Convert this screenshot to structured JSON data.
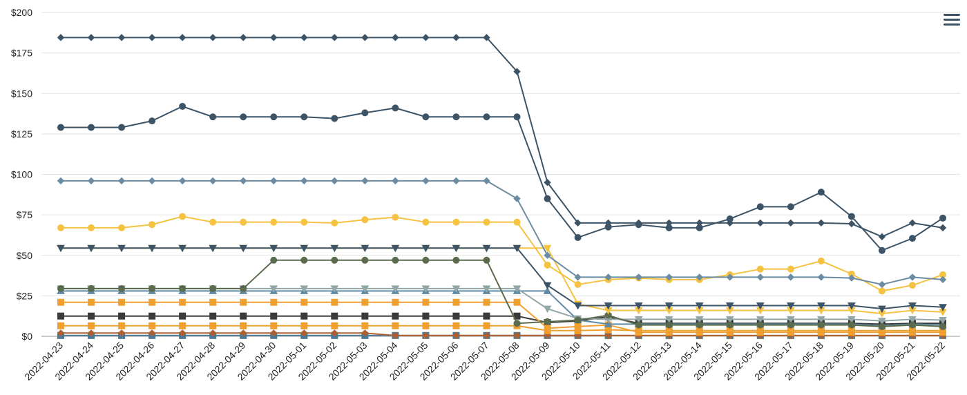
{
  "toolbar": {
    "menu_icon": "hamburger-menu-icon"
  },
  "chart_data": {
    "type": "line",
    "title": "",
    "xlabel": "",
    "ylabel": "",
    "ylim": [
      0,
      200
    ],
    "yticks": [
      0,
      25,
      50,
      75,
      100,
      125,
      150,
      175,
      200
    ],
    "ytick_labels": [
      "$0",
      "$25",
      "$50",
      "$75",
      "$100",
      "$125",
      "$150",
      "$175",
      "$200"
    ],
    "grid": true,
    "categories": [
      "2022-04-23",
      "2022-04-24",
      "2022-04-25",
      "2022-04-26",
      "2022-04-27",
      "2022-04-28",
      "2022-04-29",
      "2022-04-30",
      "2022-05-01",
      "2022-05-02",
      "2022-05-03",
      "2022-05-04",
      "2022-05-05",
      "2022-05-06",
      "2022-05-07",
      "2022-05-08",
      "2022-05-09",
      "2022-05-10",
      "2022-05-11",
      "2022-05-12",
      "2022-05-13",
      "2022-05-14",
      "2022-05-15",
      "2022-05-16",
      "2022-05-17",
      "2022-05-18",
      "2022-05-19",
      "2022-05-20",
      "2022-05-21",
      "2022-05-22"
    ],
    "series": [
      {
        "color": "#3d5366",
        "marker": "diamond",
        "values": [
          184.5,
          184.5,
          184.5,
          184.5,
          184.5,
          184.5,
          184.5,
          184.5,
          184.5,
          184.5,
          184.5,
          184.5,
          184.5,
          184.5,
          184.5,
          163.5,
          95,
          70,
          70,
          70,
          70,
          70,
          70,
          70,
          70,
          70,
          69.5,
          61.5,
          70,
          67
        ]
      },
      {
        "color": "#3d5366",
        "marker": "circle",
        "values": [
          129,
          129,
          129,
          133,
          142,
          135.5,
          135.5,
          135.5,
          135.5,
          134.5,
          138,
          141,
          135.5,
          135.5,
          135.5,
          135.5,
          85,
          61,
          67.5,
          69,
          67,
          67,
          72.5,
          80,
          80,
          89,
          74,
          53,
          60.5,
          73
        ]
      },
      {
        "color": "#6b8ca3",
        "marker": "diamond",
        "values": [
          96,
          96,
          96,
          96,
          96,
          96,
          96,
          96,
          96,
          96,
          96,
          96,
          96,
          96,
          96,
          85,
          50,
          36.5,
          36.5,
          36.5,
          36.5,
          36.5,
          36.5,
          36.5,
          36.5,
          36.5,
          36,
          32,
          36.5,
          35
        ]
      },
      {
        "color": "#f5c242",
        "marker": "circle",
        "values": [
          67,
          67,
          67,
          69,
          74,
          70.5,
          70.5,
          70.5,
          70.5,
          70,
          72,
          73.5,
          70.5,
          70.5,
          70.5,
          70.5,
          44,
          32,
          35,
          36,
          35,
          35,
          38,
          41.5,
          41.5,
          46.5,
          38.5,
          28,
          31.5,
          38
        ]
      },
      {
        "color": "#3d5366",
        "marker": "triangle-down",
        "values": [
          54.5,
          54.5,
          54.5,
          54.5,
          54.5,
          54.5,
          54.5,
          54.5,
          54.5,
          54.5,
          54.5,
          54.5,
          54.5,
          54.5,
          54.5,
          54.5,
          31.5,
          19,
          19,
          19,
          19,
          19,
          19,
          19,
          19,
          19,
          19,
          17,
          19,
          18
        ]
      },
      {
        "color": "#f5c242",
        "marker": "triangle-down",
        "values": [
          54.5,
          54.5,
          54.5,
          54.5,
          54.5,
          54.5,
          54.5,
          54.5,
          54.5,
          54.5,
          54.5,
          54.5,
          54.5,
          54.5,
          54.5,
          54.5,
          54.5,
          20,
          16,
          16,
          16,
          16,
          16,
          16,
          16,
          16,
          16,
          14,
          16,
          15
        ]
      },
      {
        "color": "#5a6b4e",
        "marker": "circle",
        "values": [
          29.5,
          29.5,
          29.5,
          29.5,
          29.5,
          29.5,
          29.5,
          47,
          47,
          47,
          47,
          47,
          47,
          47,
          47,
          8,
          9,
          10,
          13,
          7,
          7,
          7,
          7,
          7,
          7,
          7,
          7,
          6,
          7,
          6
        ]
      },
      {
        "color": "#93a6a8",
        "marker": "triangle-down",
        "values": [
          29.5,
          29.5,
          29.5,
          29.5,
          29.5,
          29.5,
          29.5,
          29.5,
          29.5,
          29.5,
          29.5,
          29.5,
          29.5,
          29.5,
          29.5,
          29.5,
          17,
          11,
          10.5,
          10.5,
          10.5,
          10.5,
          10.5,
          10.5,
          10.5,
          10.5,
          10.5,
          9.5,
          10.5,
          10
        ]
      },
      {
        "color": "#5f8aa3",
        "marker": "triangle-up",
        "values": [
          28,
          28,
          28,
          28,
          28,
          28,
          28,
          28,
          28,
          28,
          28,
          28,
          28,
          28,
          28,
          28,
          28,
          10,
          7.5,
          7.5,
          7.5,
          7.5,
          7.5,
          7.5,
          7.5,
          7.5,
          7.5,
          6.5,
          7.5,
          7
        ]
      },
      {
        "color": "#f0a030",
        "marker": "square",
        "values": [
          21,
          21,
          21,
          21,
          21,
          21,
          21,
          21,
          21,
          21,
          21,
          21,
          21,
          21,
          21,
          21,
          5,
          6,
          7,
          2.5,
          2.5,
          2.5,
          2.5,
          2.5,
          2.5,
          2.5,
          2.5,
          2.5,
          2.5,
          2.5
        ]
      },
      {
        "color": "#3a3a3a",
        "marker": "square",
        "values": [
          12.5,
          12.5,
          12.5,
          12.5,
          12.5,
          12.5,
          12.5,
          12.5,
          12.5,
          12.5,
          12.5,
          12.5,
          12.5,
          12.5,
          12.5,
          12.5,
          8.5,
          9.5,
          12,
          8,
          8,
          8,
          8,
          8,
          8,
          8,
          8,
          7.5,
          8,
          8
        ]
      },
      {
        "color": "#f0a030",
        "marker": "square",
        "values": [
          6.5,
          6.5,
          6.5,
          6.5,
          6.5,
          6.5,
          6.5,
          6.5,
          6.5,
          6.5,
          6.5,
          6.5,
          6.5,
          6.5,
          6.5,
          6.5,
          3.5,
          3.5,
          4,
          3.5,
          3.5,
          3.5,
          3.5,
          3.5,
          3.5,
          3.5,
          3.5,
          3.5,
          3.5,
          3.5
        ]
      },
      {
        "color": "#b06030",
        "marker": "diamond",
        "values": [
          2,
          2,
          2,
          2,
          2,
          2,
          2,
          2,
          2,
          2,
          2,
          0.5,
          0.5,
          0.5,
          0.5,
          0.5,
          0.5,
          0.5,
          0.5,
          0.5,
          0.5,
          0.5,
          0.5,
          0.5,
          0.5,
          0.5,
          0.5,
          0.5,
          0.5,
          0.5
        ]
      },
      {
        "color": "#4a7a9a",
        "marker": "square",
        "values": [
          0.5,
          0.5,
          0.5,
          0.5,
          0.5,
          0.5,
          0.5,
          0.5,
          0.5,
          0.5,
          0.5,
          0.5,
          0.5,
          0.5,
          0.5,
          0.5,
          0.5,
          0.5,
          0.5,
          0.5,
          0.5,
          0.5,
          0.5,
          0.5,
          0.5,
          0.5,
          0.5,
          0.5,
          0.5,
          0.5
        ]
      },
      {
        "color": "#f5d88a",
        "marker": "square",
        "values": [
          0.5,
          0.5,
          0.5,
          0.5,
          0.5,
          0.5,
          0.5,
          0.5,
          0.5,
          0.5,
          0.5,
          0.5,
          0.5,
          0.5,
          0.5,
          0.5,
          0.5,
          0.5,
          0.3,
          0.3,
          0.3,
          0.3,
          0.3,
          0.3,
          0.3,
          0.3,
          0.3,
          0.3,
          0.3,
          0.3
        ]
      }
    ]
  }
}
